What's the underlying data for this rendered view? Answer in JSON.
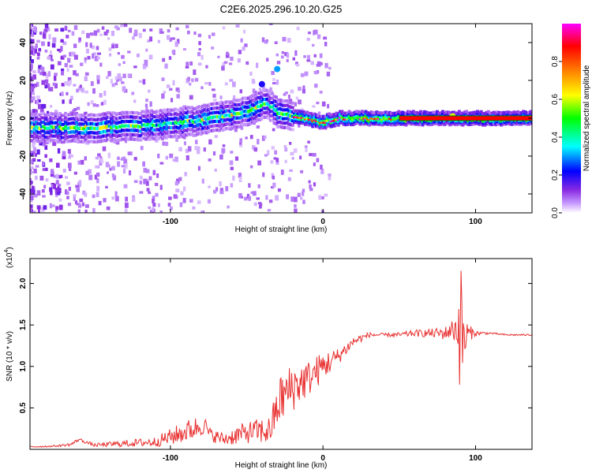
{
  "title": "C2E6.2025.296.10.20.G25",
  "chart_data": [
    {
      "type": "heatmap",
      "title": "C2E6.2025.296.10.20.G25",
      "xlabel": "Height of straight line (km)",
      "ylabel": "Frequency (Hz)",
      "xlim": [
        -192,
        137
      ],
      "ylim": [
        -50,
        50
      ],
      "xticks": [
        -100,
        0,
        100
      ],
      "yticks": [
        -40,
        -20,
        0,
        20,
        40
      ],
      "xtick_labels": [
        "-100",
        "0",
        "100"
      ],
      "ytick_labels": [
        "-40",
        "-20",
        "0",
        "20",
        "40"
      ],
      "colorbar": {
        "label": "Normalized spectral amplitude",
        "range": [
          0,
          1
        ],
        "ticks": [
          "0.0",
          "0.2",
          "0.4",
          "0.6",
          "0.8"
        ],
        "colors": [
          "#ffffff",
          "#c79bff",
          "#8a2be2",
          "#0000ff",
          "#00ffff",
          "#00ff00",
          "#ffff00",
          "#ff8000",
          "#ff0000",
          "#ff00ff"
        ]
      },
      "ridge": [
        {
          "x": -192,
          "f": -5
        },
        {
          "x": -150,
          "f": -5
        },
        {
          "x": -120,
          "f": -4
        },
        {
          "x": -100,
          "f": -3
        },
        {
          "x": -80,
          "f": -1
        },
        {
          "x": -60,
          "f": 2
        },
        {
          "x": -45,
          "f": 5
        },
        {
          "x": -37,
          "f": 8
        },
        {
          "x": -30,
          "f": 3
        },
        {
          "x": -20,
          "f": 1
        },
        {
          "x": 0,
          "f": -2
        },
        {
          "x": 10,
          "f": 0
        },
        {
          "x": 50,
          "f": 0
        },
        {
          "x": 137,
          "f": 0
        }
      ],
      "features": [
        {
          "x": -30,
          "f": 26,
          "amplitude": 0.3
        },
        {
          "x": -40,
          "f": 18,
          "amplitude": 0.2
        },
        {
          "x": 85,
          "f": 1,
          "amplitude": 0.6
        }
      ]
    },
    {
      "type": "line",
      "title": "",
      "xlabel": "Height of straight line (km)",
      "ylabel": "SNR (10 * v/v)",
      "scale_label": "(x10",
      "scale_exponent": "4",
      "xlim": [
        -192,
        137
      ],
      "ylim": [
        0,
        2.3
      ],
      "xticks": [
        -100,
        0,
        100
      ],
      "yticks": [
        0.5,
        1.0,
        1.5,
        2.0
      ],
      "xtick_labels": [
        "-100",
        "0",
        "100"
      ],
      "ytick_labels": [
        "0.5",
        "1.0",
        "1.5",
        "2.0"
      ],
      "color": "#e83030",
      "series": [
        {
          "name": "SNR",
          "x": [
            -192,
            -175,
            -165,
            -160,
            -150,
            -130,
            -110,
            -95,
            -85,
            -78,
            -74,
            -65,
            -55,
            -45,
            -35,
            -28,
            -20,
            -10,
            0,
            10,
            20,
            30,
            40,
            50,
            60,
            70,
            80,
            85,
            88,
            90,
            92,
            95,
            100,
            110,
            120,
            137
          ],
          "y": [
            0.03,
            0.04,
            0.06,
            0.12,
            0.05,
            0.07,
            0.09,
            0.18,
            0.25,
            0.3,
            0.18,
            0.12,
            0.18,
            0.22,
            0.22,
            0.6,
            0.75,
            0.85,
            1.0,
            1.12,
            1.3,
            1.38,
            1.38,
            1.38,
            1.4,
            1.4,
            1.4,
            1.45,
            1.45,
            1.5,
            1.3,
            1.4,
            1.4,
            1.4,
            1.38,
            1.38
          ],
          "noise": [
            0.01,
            0.01,
            0.02,
            0.02,
            0.02,
            0.04,
            0.06,
            0.12,
            0.14,
            0.12,
            0.08,
            0.08,
            0.12,
            0.14,
            0.18,
            0.3,
            0.3,
            0.22,
            0.18,
            0.1,
            0.06,
            0.03,
            0.02,
            0.03,
            0.04,
            0.05,
            0.08,
            0.12,
            0.25,
            0.9,
            0.45,
            0.12,
            0.03,
            0.01,
            0.01,
            0.01
          ]
        }
      ]
    }
  ]
}
